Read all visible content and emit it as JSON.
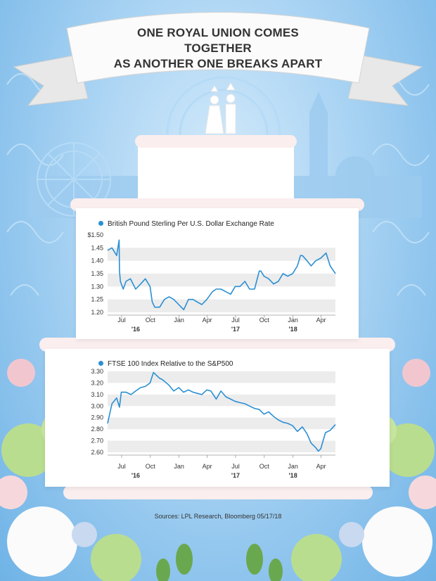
{
  "header": {
    "title_line1": "ONE ROYAL UNION COMES TOGETHER",
    "title_line2": "AS ANOTHER ONE BREAKS APART"
  },
  "footer": {
    "source": "Sources: LPL Research, Bloomberg 05/17/18"
  },
  "colors": {
    "line": "#2a8fd4",
    "band": "#ececec",
    "background": "#a9d3f3"
  },
  "chart_data": [
    {
      "type": "line",
      "title": "British Pound Sterling Per U.S. Dollar Exchange Rate",
      "x_tick_labels": [
        "Jul",
        "Oct",
        "Jan",
        "Apr",
        "Jul",
        "Oct",
        "Jan",
        "Apr"
      ],
      "year_labels": [
        "'16",
        "'17",
        "'18"
      ],
      "y_tick_labels": [
        "$1.50",
        "1.45",
        "1.40",
        "1.35",
        "1.30",
        "1.25",
        "1.20"
      ],
      "ylim": [
        1.2,
        1.5
      ],
      "x_range": [
        "2016-05-17",
        "2018-05-17"
      ],
      "grid": "alternating horizontal bands",
      "series": [
        {
          "x": [
            "2016-05-17",
            "2016-05-31",
            "2016-06-15",
            "2016-06-23",
            "2016-06-24",
            "2016-06-27",
            "2016-07-06",
            "2016-07-15",
            "2016-07-29",
            "2016-08-15",
            "2016-08-31",
            "2016-09-15",
            "2016-09-30",
            "2016-10-07",
            "2016-10-15",
            "2016-10-31",
            "2016-11-15",
            "2016-11-30",
            "2016-12-15",
            "2016-12-31",
            "2017-01-16",
            "2017-01-31",
            "2017-02-15",
            "2017-02-28",
            "2017-03-15",
            "2017-03-31",
            "2017-04-18",
            "2017-04-30",
            "2017-05-15",
            "2017-05-31",
            "2017-06-15",
            "2017-06-30",
            "2017-07-15",
            "2017-07-31",
            "2017-08-15",
            "2017-08-31",
            "2017-09-15",
            "2017-09-20",
            "2017-09-30",
            "2017-10-15",
            "2017-10-31",
            "2017-11-15",
            "2017-11-30",
            "2017-12-15",
            "2017-12-31",
            "2018-01-15",
            "2018-01-25",
            "2018-01-31",
            "2018-02-15",
            "2018-02-28",
            "2018-03-15",
            "2018-03-31",
            "2018-04-17",
            "2018-04-30",
            "2018-05-17"
          ],
          "values": [
            1.44,
            1.45,
            1.42,
            1.48,
            1.36,
            1.32,
            1.29,
            1.32,
            1.33,
            1.29,
            1.31,
            1.33,
            1.3,
            1.24,
            1.22,
            1.22,
            1.25,
            1.26,
            1.25,
            1.23,
            1.21,
            1.25,
            1.25,
            1.24,
            1.23,
            1.25,
            1.28,
            1.29,
            1.29,
            1.28,
            1.27,
            1.3,
            1.3,
            1.32,
            1.29,
            1.29,
            1.36,
            1.36,
            1.34,
            1.33,
            1.31,
            1.32,
            1.35,
            1.34,
            1.35,
            1.38,
            1.42,
            1.42,
            1.4,
            1.38,
            1.4,
            1.41,
            1.43,
            1.38,
            1.35
          ]
        }
      ]
    },
    {
      "type": "line",
      "title": "FTSE 100 Index Relative to the S&P500",
      "x_tick_labels": [
        "Jul",
        "Oct",
        "Jan",
        "Apr",
        "Jul",
        "Oct",
        "Jan",
        "Apr"
      ],
      "year_labels": [
        "'16",
        "'17",
        "'18"
      ],
      "y_tick_labels": [
        "3.30",
        "3.20",
        "3.10",
        "3.00",
        "2.90",
        "2.80",
        "2.70",
        "2.60"
      ],
      "ylim": [
        2.6,
        3.3
      ],
      "x_range": [
        "2016-05-17",
        "2018-05-17"
      ],
      "grid": "alternating horizontal bands",
      "series": [
        {
          "x": [
            "2016-05-17",
            "2016-05-31",
            "2016-06-15",
            "2016-06-24",
            "2016-06-30",
            "2016-07-15",
            "2016-07-31",
            "2016-08-15",
            "2016-08-31",
            "2016-09-15",
            "2016-09-30",
            "2016-10-11",
            "2016-10-31",
            "2016-11-08",
            "2016-11-30",
            "2016-12-15",
            "2016-12-31",
            "2017-01-15",
            "2017-01-31",
            "2017-02-15",
            "2017-02-28",
            "2017-03-15",
            "2017-03-31",
            "2017-04-13",
            "2017-04-30",
            "2017-05-15",
            "2017-05-31",
            "2017-06-15",
            "2017-06-30",
            "2017-07-15",
            "2017-07-31",
            "2017-08-15",
            "2017-08-31",
            "2017-09-15",
            "2017-09-30",
            "2017-10-15",
            "2017-10-31",
            "2017-11-15",
            "2017-11-30",
            "2017-12-15",
            "2017-12-31",
            "2018-01-15",
            "2018-01-31",
            "2018-02-15",
            "2018-02-28",
            "2018-03-15",
            "2018-03-23",
            "2018-03-31",
            "2018-04-15",
            "2018-04-30",
            "2018-05-17"
          ],
          "values": [
            2.85,
            3.02,
            3.07,
            2.99,
            3.12,
            3.12,
            3.1,
            3.13,
            3.16,
            3.17,
            3.2,
            3.29,
            3.24,
            3.23,
            3.18,
            3.13,
            3.16,
            3.12,
            3.14,
            3.12,
            3.11,
            3.1,
            3.14,
            3.13,
            3.06,
            3.13,
            3.08,
            3.06,
            3.04,
            3.03,
            3.02,
            3.0,
            2.98,
            2.97,
            2.93,
            2.95,
            2.91,
            2.88,
            2.86,
            2.85,
            2.83,
            2.78,
            2.82,
            2.76,
            2.68,
            2.64,
            2.61,
            2.63,
            2.77,
            2.79,
            2.84
          ]
        }
      ]
    }
  ]
}
